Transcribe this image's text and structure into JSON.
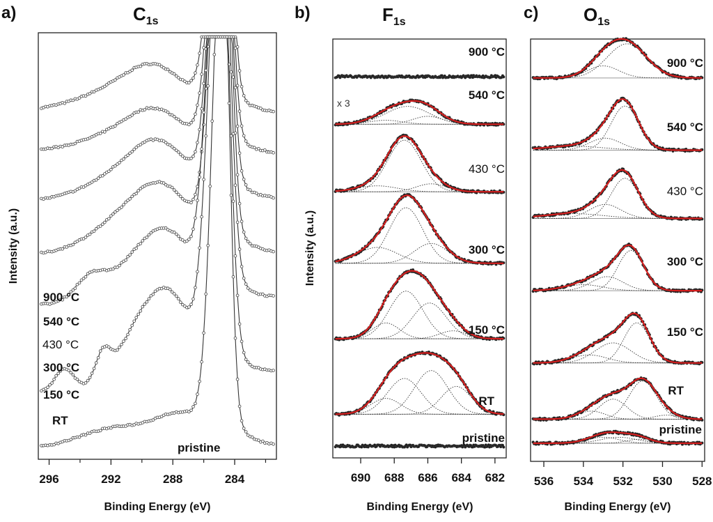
{
  "chart_data": [
    {
      "panel": "a)",
      "type": "line",
      "title": "C",
      "title_sub": "1s",
      "xlabel": "Binding Energy (eV)",
      "ylabel": "Intensity (a.u.)",
      "xlim": [
        296.7,
        281.3
      ],
      "x_reversed": true,
      "x_ticks": [
        296,
        292,
        288,
        284
      ],
      "x_minor_ticks": [
        294,
        290,
        286,
        282
      ],
      "grid": false,
      "markers": "open-circle",
      "series": [
        {
          "name": "900 °C",
          "offset": 0.8,
          "peak_center": 284.8,
          "peak_height": 0.88,
          "peak_width": 0.55,
          "shoulder": [
            [
              291.5,
              0.05,
              2.5
            ],
            [
              289.0,
              0.08,
              1.8
            ]
          ],
          "bg_left": 0.03,
          "bg_right": 0.02
        },
        {
          "name": "540 °C",
          "offset": 0.7,
          "peak_center": 284.8,
          "peak_height": 0.92,
          "peak_width": 0.55,
          "shoulder": [
            [
              291.5,
              0.04,
              2.5
            ],
            [
              289.0,
              0.08,
              1.8
            ]
          ],
          "bg_left": 0.03,
          "bg_right": 0.02
        },
        {
          "name": "430 °C",
          "offset": 0.58,
          "peak_center": 284.8,
          "peak_height": 0.98,
          "peak_width": 0.55,
          "shoulder": [
            [
              291.0,
              0.06,
              2.5
            ],
            [
              288.8,
              0.1,
              1.8
            ]
          ],
          "bg_left": 0.03,
          "bg_right": 0.03
        },
        {
          "name": "300 °C",
          "offset": 0.45,
          "peak_center": 284.8,
          "peak_height": 1.04,
          "peak_width": 0.55,
          "shoulder": [
            [
              291.0,
              0.08,
              2.3
            ],
            [
              288.5,
              0.12,
              1.8
            ]
          ],
          "bg_left": 0.03,
          "bg_right": 0.03
        },
        {
          "name": "150 °C",
          "offset": 0.33,
          "peak_center": 284.9,
          "peak_height": 1.08,
          "peak_width": 0.6,
          "shoulder": [
            [
              293.3,
              0.06,
              1.0
            ],
            [
              290.5,
              0.08,
              1.5
            ],
            [
              288.2,
              0.14,
              1.5
            ]
          ],
          "bg_left": 0.03,
          "bg_right": 0.04
        },
        {
          "name": "RT",
          "offset": 0.13,
          "peak_center": 284.9,
          "peak_height": 1.14,
          "peak_width": 0.6,
          "shoulder": [
            [
              295.0,
              0.05,
              0.6
            ],
            [
              292.5,
              0.07,
              0.5
            ],
            [
              290.5,
              0.09,
              1.2
            ],
            [
              288.3,
              0.2,
              1.4
            ]
          ],
          "bg_left": 0.02,
          "bg_right": 0.06
        },
        {
          "name": "pristine",
          "offset": 0.0,
          "peak_center": 284.8,
          "peak_height": 1.22,
          "peak_width": 0.5,
          "shoulder": [
            [
              291.5,
              0.05,
              2.5
            ],
            [
              287.5,
              0.06,
              1.6
            ]
          ],
          "bg_left": 0.01,
          "bg_right": 0.01
        }
      ],
      "labels": [
        "900 °C",
        "540 °C",
        "430 °C",
        "300 °C",
        "150 °C",
        "RT",
        "pristine"
      ]
    },
    {
      "panel": "b)",
      "type": "line",
      "title": "F",
      "title_sub": "1s",
      "xlabel": "Binding Energy (eV)",
      "ylabel": "Intensity (a.u.)",
      "xlim": [
        691.66,
        681.33
      ],
      "x_reversed": true,
      "x_ticks": [
        690,
        688,
        686,
        684,
        682
      ],
      "grid": false,
      "fit_color": "#d61f1f",
      "annotation": "x 3",
      "series": [
        {
          "name": "900 °C",
          "offset": 0.93,
          "components": []
        },
        {
          "name": "540 °C",
          "offset": 0.81,
          "scale_note": "x 3",
          "components": [
            [
              688.5,
              0.01,
              1.0
            ],
            [
              687.2,
              0.045,
              1.3
            ],
            [
              686.0,
              0.02,
              0.9
            ]
          ]
        },
        {
          "name": "430 °C",
          "offset": 0.64,
          "components": [
            [
              689.0,
              0.015,
              1.2
            ],
            [
              687.4,
              0.13,
              1.0
            ],
            [
              685.8,
              0.02,
              0.9
            ]
          ]
        },
        {
          "name": "300 °C",
          "offset": 0.46,
          "components": [
            [
              689.0,
              0.04,
              1.2
            ],
            [
              687.3,
              0.14,
              1.0
            ],
            [
              685.8,
              0.05,
              1.0
            ]
          ]
        },
        {
          "name": "150 °C",
          "offset": 0.27,
          "components": [
            [
              688.5,
              0.04,
              0.8
            ],
            [
              687.3,
              0.12,
              1.0
            ],
            [
              685.9,
              0.09,
              1.0
            ],
            [
              684.5,
              0.02,
              0.8
            ]
          ]
        },
        {
          "name": "RT",
          "offset": 0.08,
          "components": [
            [
              688.5,
              0.04,
              0.9
            ],
            [
              687.4,
              0.09,
              1.0
            ],
            [
              685.8,
              0.11,
              1.0
            ],
            [
              684.3,
              0.07,
              0.9
            ]
          ]
        },
        {
          "name": "pristine",
          "offset": 0.0,
          "components": []
        }
      ],
      "labels": [
        "900 °C",
        "540 °C",
        "430 °C",
        "300 °C",
        "150 °C",
        "RT",
        "pristine"
      ]
    },
    {
      "panel": "c)",
      "type": "line",
      "title": "O",
      "title_sub": "1s",
      "xlabel": "Binding Energy (eV)",
      "ylabel": "",
      "xlim": [
        536.67,
        527.87
      ],
      "x_reversed": true,
      "x_ticks": [
        536,
        534,
        532,
        530,
        528
      ],
      "grid": false,
      "fit_color": "#d61f1f",
      "series": [
        {
          "name": "900 °C",
          "offset": 0.91,
          "components": [
            [
              533.0,
              0.03,
              0.8
            ],
            [
              531.8,
              0.085,
              1.0
            ]
          ]
        },
        {
          "name": "540 °C",
          "offset": 0.73,
          "components": [
            [
              534.5,
              0.01,
              1.5
            ],
            [
              532.9,
              0.03,
              0.8
            ],
            [
              531.9,
              0.11,
              0.7
            ]
          ]
        },
        {
          "name": "430 °C",
          "offset": 0.56,
          "components": [
            [
              534.5,
              0.012,
              1.5
            ],
            [
              532.9,
              0.035,
              0.8
            ],
            [
              531.9,
              0.1,
              0.7
            ]
          ]
        },
        {
          "name": "300 °C",
          "offset": 0.38,
          "components": [
            [
              534.0,
              0.015,
              1.0
            ],
            [
              532.8,
              0.035,
              0.8
            ],
            [
              531.6,
              0.1,
              0.65
            ]
          ]
        },
        {
          "name": "150 °C",
          "offset": 0.2,
          "components": [
            [
              533.7,
              0.02,
              0.9
            ],
            [
              532.5,
              0.05,
              0.9
            ],
            [
              531.3,
              0.1,
              0.65
            ]
          ]
        },
        {
          "name": "RT",
          "offset": 0.06,
          "components": [
            [
              533.6,
              0.02,
              0.7
            ],
            [
              532.5,
              0.05,
              0.7
            ],
            [
              531.0,
              0.095,
              0.7
            ],
            [
              529.8,
              0.01,
              0.6
            ]
          ]
        },
        {
          "name": "pristine",
          "offset": 0.0,
          "components": [
            [
              533.0,
              0.015,
              0.8
            ],
            [
              532.2,
              0.015,
              0.9
            ],
            [
              531.2,
              0.01,
              0.6
            ]
          ]
        }
      ],
      "labels": [
        "900 °C",
        "540 °C",
        "430 °C",
        "300 °C",
        "150 °C",
        "RT",
        "pristine"
      ]
    }
  ]
}
